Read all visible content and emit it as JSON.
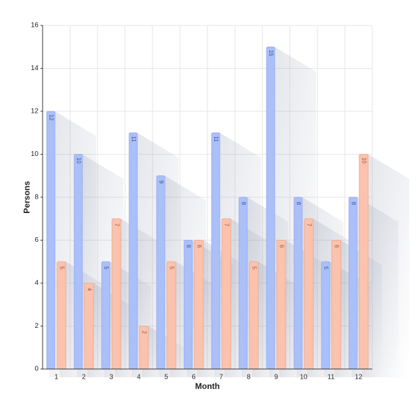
{
  "chart_data": {
    "type": "bar",
    "x_label": "Month",
    "y_label": "Persons",
    "categories": [
      "1",
      "2",
      "3",
      "4",
      "5",
      "6",
      "7",
      "8",
      "9",
      "10",
      "11",
      "12"
    ],
    "series": [
      {
        "color": "#abbff8",
        "values": [
          12,
          10,
          5,
          11,
          9,
          6,
          11,
          8,
          15,
          8,
          5,
          8
        ]
      },
      {
        "color": "#fbc2ad",
        "values": [
          5,
          4,
          7,
          2,
          5,
          6,
          7,
          5,
          6,
          7,
          6,
          10
        ]
      }
    ],
    "ylim": [
      0,
      16
    ],
    "yticks": [
      0,
      2,
      4,
      6,
      8,
      10,
      12,
      14,
      16
    ],
    "grid": true
  }
}
